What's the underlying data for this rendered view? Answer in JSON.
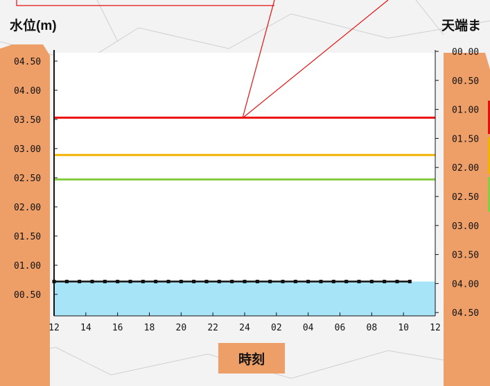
{
  "chart_data": {
    "type": "line",
    "ylabel": "水位(m)",
    "ylabel_right": "天端ま",
    "xlabel": "時刻",
    "x_ticks": [
      "12",
      "14",
      "16",
      "18",
      "20",
      "22",
      "24",
      "02",
      "04",
      "06",
      "08",
      "10",
      "12"
    ],
    "y_left_ticks": [
      "04.50",
      "04.00",
      "03.50",
      "03.00",
      "02.50",
      "02.00",
      "01.50",
      "01.00",
      "00.50"
    ],
    "y_left_values": [
      4.5,
      4.0,
      3.5,
      3.0,
      2.5,
      2.0,
      1.5,
      1.0,
      0.5
    ],
    "y_right_ticks": [
      "00.00",
      "00.50",
      "01.00",
      "01.50",
      "02.00",
      "02.50",
      "03.00",
      "03.50",
      "04.00",
      "04.50"
    ],
    "ylim": [
      0,
      4.5
    ],
    "xlim": [
      0,
      24
    ],
    "thresholds": [
      {
        "value": 3.53,
        "color": "#ee1111"
      },
      {
        "value": 2.89,
        "color": "#f0b400"
      },
      {
        "value": 2.47,
        "color": "#88cc44"
      }
    ],
    "series": [
      {
        "x": [
          0,
          0.8,
          1.6,
          2.4,
          3.2,
          4.0,
          4.8,
          5.6,
          6.4,
          7.2,
          8.0,
          8.8,
          9.6,
          10.4,
          11.2,
          12.0,
          12.8,
          13.6,
          14.4,
          15.2,
          16.0,
          16.8,
          17.6,
          18.4,
          19.2,
          20.0,
          20.8,
          21.6,
          22.4
        ],
        "values": [
          0.72,
          0.72,
          0.72,
          0.72,
          0.72,
          0.72,
          0.72,
          0.72,
          0.72,
          0.72,
          0.72,
          0.72,
          0.72,
          0.72,
          0.72,
          0.72,
          0.72,
          0.72,
          0.72,
          0.72,
          0.72,
          0.72,
          0.72,
          0.72,
          0.72,
          0.72,
          0.72,
          0.72,
          0.72
        ],
        "color": "#111111"
      }
    ],
    "fill_level": 0.72,
    "fill_color": "#a8e4f8"
  }
}
